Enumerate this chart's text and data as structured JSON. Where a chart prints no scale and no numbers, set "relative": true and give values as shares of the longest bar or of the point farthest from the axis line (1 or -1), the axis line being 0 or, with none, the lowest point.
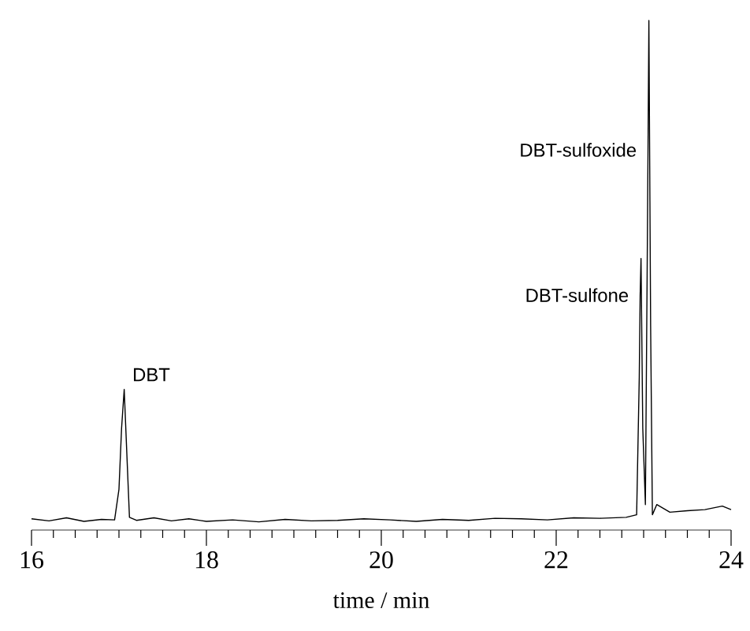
{
  "chart_data": {
    "type": "line",
    "relative": true,
    "xlabel": "time / min",
    "xlim": [
      16,
      24
    ],
    "xticks": [
      16,
      18,
      20,
      22,
      24
    ],
    "tick_labels": "x",
    "grid": false,
    "marker": "none",
    "series": [
      {
        "color": "#000000",
        "x": [
          16.0,
          16.2,
          16.4,
          16.6,
          16.8,
          16.95,
          17.0,
          17.03,
          17.06,
          17.09,
          17.12,
          17.2,
          17.4,
          17.6,
          17.8,
          18.0,
          18.3,
          18.6,
          18.9,
          19.2,
          19.5,
          19.8,
          20.1,
          20.4,
          20.7,
          21.0,
          21.3,
          21.6,
          21.9,
          22.2,
          22.5,
          22.8,
          22.92,
          22.95,
          22.96,
          22.97,
          22.99,
          23.02,
          23.04,
          23.05,
          23.06,
          23.08,
          23.1,
          23.15,
          23.3,
          23.5,
          23.7,
          23.9,
          24.0
        ],
        "values": [
          0.022,
          0.018,
          0.024,
          0.017,
          0.021,
          0.02,
          0.08,
          0.2,
          0.276,
          0.15,
          0.025,
          0.019,
          0.024,
          0.018,
          0.022,
          0.017,
          0.02,
          0.016,
          0.021,
          0.018,
          0.019,
          0.022,
          0.02,
          0.017,
          0.021,
          0.019,
          0.023,
          0.022,
          0.02,
          0.024,
          0.023,
          0.025,
          0.03,
          0.3,
          0.461,
          0.533,
          0.2,
          0.05,
          0.5,
          0.746,
          1.0,
          0.4,
          0.03,
          0.05,
          0.035,
          0.038,
          0.04,
          0.047,
          0.04
        ]
      }
    ],
    "annotations": [
      {
        "text": "DBT",
        "x": 17.06,
        "y": 0.276
      },
      {
        "text": "DBT-sulfone",
        "x": 22.96,
        "y": 0.461
      },
      {
        "text": "DBT-sulfoxide",
        "x": 23.05,
        "y": 0.746
      }
    ]
  }
}
